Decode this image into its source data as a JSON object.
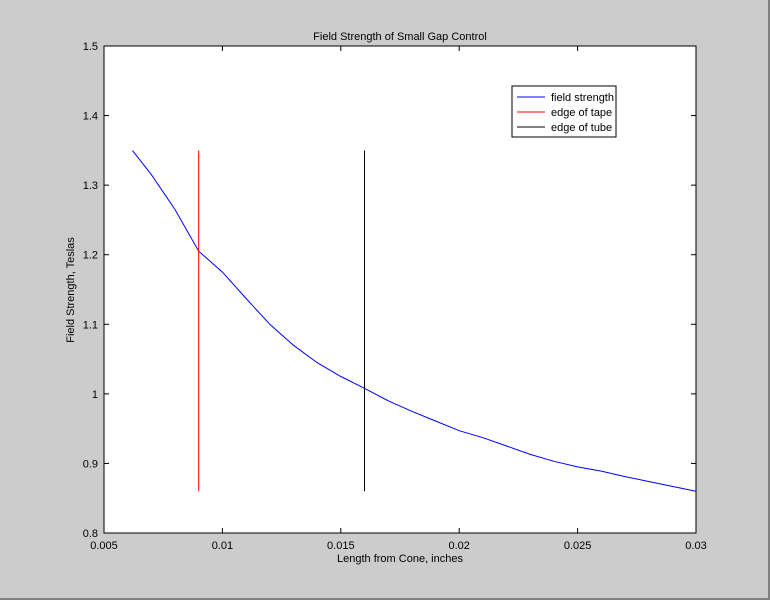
{
  "chart_data": {
    "type": "line",
    "title": "Field Strength of Small Gap Control",
    "xlabel": "Length from Cone, inches",
    "ylabel": "Field Strength, Teslas",
    "xlim": [
      0.005,
      0.03
    ],
    "ylim": [
      0.8,
      1.5
    ],
    "xticks": [
      "0.005",
      "0.01",
      "0.015",
      "0.02",
      "0.025",
      "0.03"
    ],
    "yticks": [
      "0.8",
      "0.9",
      "1",
      "1.1",
      "1.2",
      "1.3",
      "1.4",
      "1.5"
    ],
    "grid": false,
    "legend_position": "top-right",
    "series": [
      {
        "name": "field strength",
        "color": "#0000ff",
        "x": [
          0.0062,
          0.007,
          0.008,
          0.009,
          0.01,
          0.011,
          0.012,
          0.013,
          0.014,
          0.015,
          0.016,
          0.017,
          0.018,
          0.019,
          0.02,
          0.021,
          0.022,
          0.023,
          0.024,
          0.025,
          0.026,
          0.027,
          0.028,
          0.029,
          0.03
        ],
        "y": [
          1.35,
          1.315,
          1.265,
          1.205,
          1.175,
          1.137,
          1.1,
          1.07,
          1.045,
          1.025,
          1.008,
          0.99,
          0.975,
          0.961,
          0.947,
          0.937,
          0.925,
          0.913,
          0.903,
          0.895,
          0.889,
          0.881,
          0.874,
          0.867,
          0.86
        ]
      },
      {
        "name": "edge of tape",
        "color": "#ff0000",
        "x": [
          0.009,
          0.009
        ],
        "y": [
          0.86,
          1.35
        ]
      },
      {
        "name": "edge of tube",
        "color": "#000000",
        "x": [
          0.016,
          0.016
        ],
        "y": [
          0.86,
          1.35
        ]
      }
    ]
  }
}
